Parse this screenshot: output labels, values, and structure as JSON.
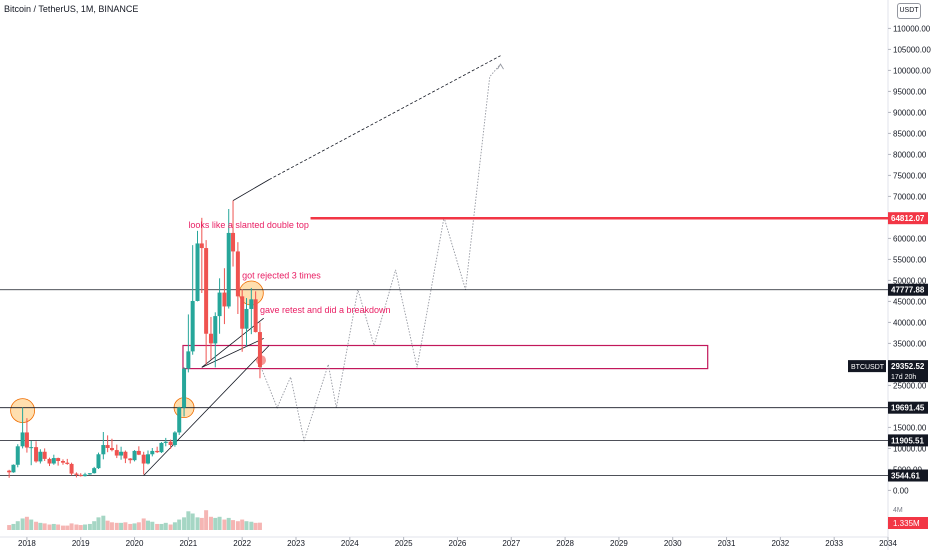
{
  "header": {
    "title": "Bitcoin / TetherUS, 1M, BINANCE",
    "unit": "USDT"
  },
  "chart_data": {
    "type": "candlestick",
    "symbol": "BTCUSDT",
    "yticks": [
      0,
      5000,
      10000,
      15000,
      20000,
      25000,
      30000,
      35000,
      40000,
      45000,
      50000,
      55000,
      60000,
      65000,
      70000,
      75000,
      80000,
      85000,
      90000,
      95000,
      100000,
      105000,
      110000
    ],
    "ytick_labels": [
      "0.00",
      "5000.00",
      "10000.00",
      "15000.00",
      "20000.00",
      "25000.00",
      "30000.00",
      "35000.00",
      "40000.00",
      "45000.00",
      "50000.00",
      "55000.00",
      "60000.00",
      "65000.00",
      "70000.00",
      "75000.00",
      "80000.00",
      "85000.00",
      "90000.00",
      "95000.00",
      "100000.00",
      "105000.00",
      "110000.00"
    ],
    "xticks": [
      "2018",
      "2019",
      "2020",
      "2021",
      "2022",
      "2023",
      "2024",
      "2025",
      "2026",
      "2027",
      "2028",
      "2029",
      "2030",
      "2031",
      "2032",
      "2033",
      "2034"
    ],
    "xlim": [
      2017.5,
      2034.0
    ],
    "ylim": [
      -3000,
      112000
    ],
    "price_levels": [
      {
        "label": "64812.07",
        "value": 64812.07,
        "color": "#f23645"
      },
      {
        "label": "47777.88",
        "value": 47777.88,
        "color": "#131722"
      },
      {
        "label": "19691.45",
        "value": 19691.45,
        "color": "#131722"
      },
      {
        "label": "11905.51",
        "value": 11905.51,
        "color": "#131722"
      },
      {
        "label": "3544.61",
        "value": 3544.61,
        "color": "#131722"
      }
    ],
    "current_price": {
      "symbol": "BTCUSDT",
      "label": "29352.52",
      "countdown": "17d 20h",
      "value": 29352.52
    },
    "volume": {
      "label": "4M",
      "current": "1.335M"
    },
    "annotations": [
      {
        "text": "looks like a slanted double top",
        "x": 2021.0,
        "y": 62500
      },
      {
        "text": "got rejected 3 times",
        "x": 2022.0,
        "y": 50500
      },
      {
        "text": "gave retest and did a breakdown",
        "x": 2022.33,
        "y": 42200
      }
    ],
    "candles": [
      {
        "t": 2017.67,
        "o": 4700,
        "h": 4900,
        "l": 3000,
        "c": 4300
      },
      {
        "t": 2017.75,
        "o": 4300,
        "h": 6200,
        "l": 4200,
        "c": 6100
      },
      {
        "t": 2017.83,
        "o": 6100,
        "h": 11000,
        "l": 5500,
        "c": 10500
      },
      {
        "t": 2017.92,
        "o": 10500,
        "h": 19700,
        "l": 10000,
        "c": 13800
      },
      {
        "t": 2018.0,
        "o": 13800,
        "h": 17200,
        "l": 9000,
        "c": 10200
      },
      {
        "t": 2018.08,
        "o": 10200,
        "h": 11800,
        "l": 6000,
        "c": 10300
      },
      {
        "t": 2018.17,
        "o": 10300,
        "h": 11700,
        "l": 6600,
        "c": 6900
      },
      {
        "t": 2018.25,
        "o": 6900,
        "h": 9800,
        "l": 6400,
        "c": 9200
      },
      {
        "t": 2018.33,
        "o": 9200,
        "h": 10000,
        "l": 7000,
        "c": 7500
      },
      {
        "t": 2018.42,
        "o": 7500,
        "h": 7800,
        "l": 5800,
        "c": 6400
      },
      {
        "t": 2018.5,
        "o": 6400,
        "h": 8500,
        "l": 6100,
        "c": 7700
      },
      {
        "t": 2018.58,
        "o": 7700,
        "h": 7800,
        "l": 5900,
        "c": 7000
      },
      {
        "t": 2018.67,
        "o": 7000,
        "h": 7400,
        "l": 6100,
        "c": 6600
      },
      {
        "t": 2018.75,
        "o": 6600,
        "h": 7500,
        "l": 6100,
        "c": 6300
      },
      {
        "t": 2018.83,
        "o": 6300,
        "h": 6600,
        "l": 3600,
        "c": 4000
      },
      {
        "t": 2018.92,
        "o": 4000,
        "h": 4300,
        "l": 3100,
        "c": 3700
      },
      {
        "t": 2019.0,
        "o": 3700,
        "h": 4100,
        "l": 3300,
        "c": 3400
      },
      {
        "t": 2019.08,
        "o": 3400,
        "h": 4200,
        "l": 3300,
        "c": 3800
      },
      {
        "t": 2019.17,
        "o": 3800,
        "h": 4100,
        "l": 3700,
        "c": 4100
      },
      {
        "t": 2019.25,
        "o": 4100,
        "h": 5600,
        "l": 4000,
        "c": 5300
      },
      {
        "t": 2019.33,
        "o": 5300,
        "h": 9000,
        "l": 5100,
        "c": 8600
      },
      {
        "t": 2019.42,
        "o": 8600,
        "h": 13900,
        "l": 7400,
        "c": 10800
      },
      {
        "t": 2019.5,
        "o": 10800,
        "h": 13100,
        "l": 9100,
        "c": 10100
      },
      {
        "t": 2019.58,
        "o": 10100,
        "h": 12300,
        "l": 9300,
        "c": 9600
      },
      {
        "t": 2019.67,
        "o": 9600,
        "h": 10900,
        "l": 7700,
        "c": 8300
      },
      {
        "t": 2019.75,
        "o": 8300,
        "h": 10400,
        "l": 7300,
        "c": 9200
      },
      {
        "t": 2019.83,
        "o": 9200,
        "h": 9500,
        "l": 6500,
        "c": 7600
      },
      {
        "t": 2019.92,
        "o": 7600,
        "h": 7700,
        "l": 6400,
        "c": 7200
      },
      {
        "t": 2020.0,
        "o": 7200,
        "h": 9600,
        "l": 6900,
        "c": 9400
      },
      {
        "t": 2020.08,
        "o": 9400,
        "h": 10500,
        "l": 8400,
        "c": 8500
      },
      {
        "t": 2020.17,
        "o": 8500,
        "h": 9200,
        "l": 3800,
        "c": 6400
      },
      {
        "t": 2020.25,
        "o": 6400,
        "h": 9500,
        "l": 6200,
        "c": 8600
      },
      {
        "t": 2020.33,
        "o": 8600,
        "h": 10100,
        "l": 8100,
        "c": 9400
      },
      {
        "t": 2020.42,
        "o": 9400,
        "h": 10400,
        "l": 8900,
        "c": 9100
      },
      {
        "t": 2020.5,
        "o": 9100,
        "h": 11500,
        "l": 8900,
        "c": 11300
      },
      {
        "t": 2020.58,
        "o": 11300,
        "h": 12500,
        "l": 10500,
        "c": 11600
      },
      {
        "t": 2020.67,
        "o": 11600,
        "h": 12100,
        "l": 9900,
        "c": 10800
      },
      {
        "t": 2020.75,
        "o": 10800,
        "h": 14100,
        "l": 10400,
        "c": 13800
      },
      {
        "t": 2020.83,
        "o": 13800,
        "h": 19900,
        "l": 13200,
        "c": 19700
      },
      {
        "t": 2020.92,
        "o": 19700,
        "h": 29300,
        "l": 17600,
        "c": 29000
      },
      {
        "t": 2021.0,
        "o": 29000,
        "h": 41900,
        "l": 28100,
        "c": 33100
      },
      {
        "t": 2021.08,
        "o": 33100,
        "h": 58400,
        "l": 32300,
        "c": 45100
      },
      {
        "t": 2021.17,
        "o": 45100,
        "h": 61800,
        "l": 45000,
        "c": 58800
      },
      {
        "t": 2021.25,
        "o": 58800,
        "h": 64900,
        "l": 47000,
        "c": 57700
      },
      {
        "t": 2021.33,
        "o": 57700,
        "h": 59600,
        "l": 30000,
        "c": 37300
      },
      {
        "t": 2021.42,
        "o": 37300,
        "h": 41300,
        "l": 31100,
        "c": 35000
      },
      {
        "t": 2021.5,
        "o": 35000,
        "h": 42400,
        "l": 29300,
        "c": 41500
      },
      {
        "t": 2021.58,
        "o": 41500,
        "h": 50500,
        "l": 37300,
        "c": 47100
      },
      {
        "t": 2021.67,
        "o": 47100,
        "h": 52900,
        "l": 39600,
        "c": 43800
      },
      {
        "t": 2021.75,
        "o": 43800,
        "h": 67000,
        "l": 43300,
        "c": 61300
      },
      {
        "t": 2021.83,
        "o": 61300,
        "h": 69000,
        "l": 53300,
        "c": 56900
      },
      {
        "t": 2021.92,
        "o": 56900,
        "h": 59100,
        "l": 42000,
        "c": 46200
      },
      {
        "t": 2022.0,
        "o": 46200,
        "h": 47900,
        "l": 33000,
        "c": 38500
      },
      {
        "t": 2022.08,
        "o": 38500,
        "h": 45800,
        "l": 34300,
        "c": 43200
      },
      {
        "t": 2022.17,
        "o": 43200,
        "h": 48200,
        "l": 37200,
        "c": 45500
      },
      {
        "t": 2022.25,
        "o": 45500,
        "h": 47400,
        "l": 37600,
        "c": 37700
      },
      {
        "t": 2022.33,
        "o": 37700,
        "h": 40000,
        "l": 26700,
        "c": 29352.52
      }
    ],
    "volumes": [
      0.9,
      1.1,
      1.6,
      2.1,
      2.4,
      1.9,
      1.5,
      1.3,
      1.2,
      1.0,
      1.1,
      1.0,
      0.8,
      0.8,
      1.2,
      1.0,
      0.9,
      1.0,
      1.1,
      1.6,
      2.3,
      2.6,
      1.7,
      1.4,
      1.3,
      1.3,
      1.4,
      1.1,
      1.2,
      1.4,
      2.1,
      1.7,
      1.5,
      1.1,
      1.1,
      1.3,
      1.0,
      1.4,
      1.9,
      2.3,
      3.4,
      3.0,
      2.3,
      2.2,
      3.6,
      2.4,
      2.2,
      2.4,
      1.9,
      2.2,
      1.8,
      1.6,
      1.9,
      1.6,
      1.5,
      1.3,
      1.335
    ],
    "vmax": 4.0
  }
}
